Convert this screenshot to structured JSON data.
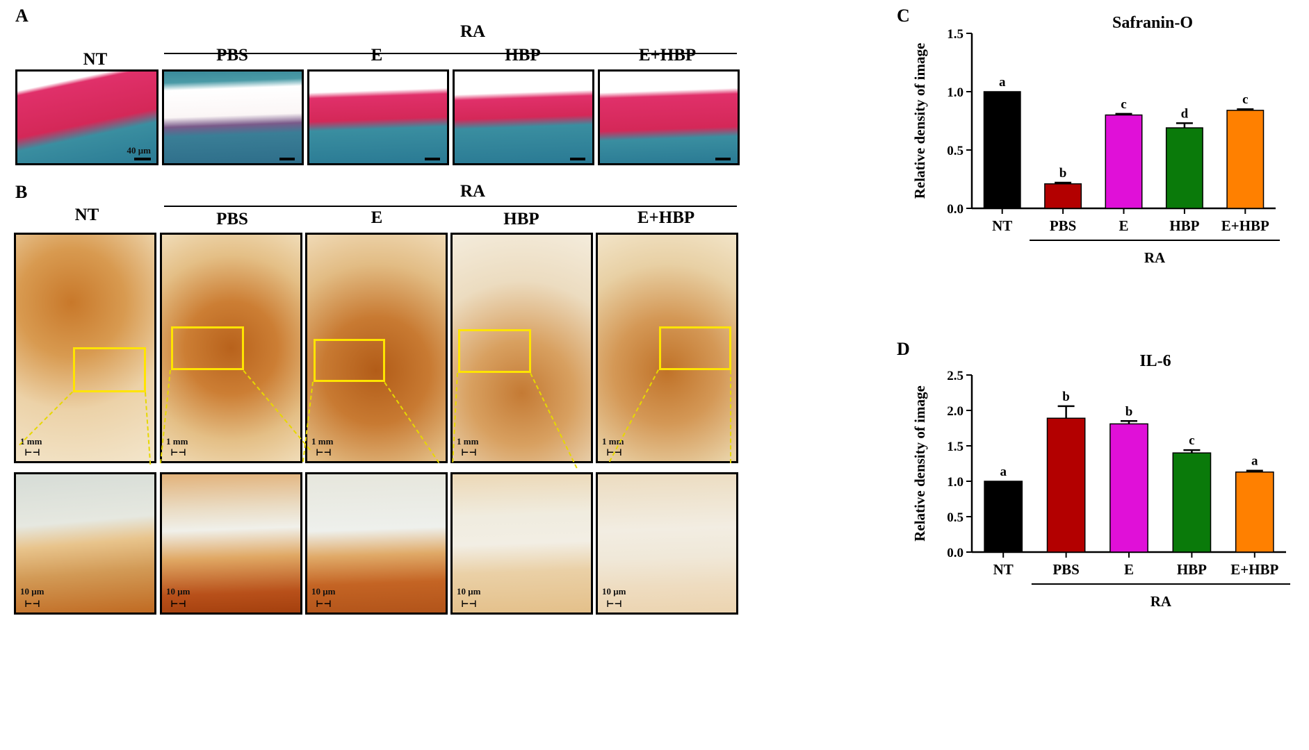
{
  "panels": {
    "a": {
      "letter": "A",
      "group_label": "RA",
      "columns": [
        "NT",
        "PBS",
        "E",
        "HBP",
        "E+HBP"
      ],
      "scale_label": "40 μm"
    },
    "b": {
      "letter": "B",
      "group_label": "RA",
      "columns": [
        "NT",
        "PBS",
        "E",
        "HBP",
        "E+HBP"
      ],
      "scale_top": [
        "1 mm",
        "1 mm",
        "1 mm",
        "1 mm",
        "1 mm"
      ],
      "scale_bottom": [
        "10 μm",
        "10 μm",
        "10 μm",
        "10 μm",
        "10 μm"
      ]
    },
    "c": {
      "letter": "C"
    },
    "d": {
      "letter": "D"
    }
  },
  "chart_data": [
    {
      "type": "bar",
      "title": "Safranin-O",
      "ylabel": "Relative density of image",
      "categories": [
        "NT",
        "PBS",
        "E",
        "HBP",
        "E+HBP"
      ],
      "values": [
        1.0,
        0.21,
        0.8,
        0.69,
        0.84
      ],
      "errors": [
        0.0,
        0.01,
        0.01,
        0.04,
        0.01
      ],
      "letters": [
        "a",
        "b",
        "c",
        "d",
        "c"
      ],
      "colors": [
        "#000000",
        "#b30000",
        "#e010d8",
        "#0a7a0a",
        "#ff8000"
      ],
      "ylim": [
        0,
        1.5
      ],
      "yticks": [
        "0.0",
        "0.5",
        "1.0",
        "1.5"
      ],
      "group_label": "RA"
    },
    {
      "type": "bar",
      "title": "IL-6",
      "ylabel": "Relative density of image",
      "categories": [
        "NT",
        "PBS",
        "E",
        "HBP",
        "E+HBP"
      ],
      "values": [
        1.0,
        1.89,
        1.81,
        1.4,
        1.13
      ],
      "errors": [
        0.0,
        0.17,
        0.04,
        0.04,
        0.02
      ],
      "letters": [
        "a",
        "b",
        "b",
        "c",
        "a"
      ],
      "colors": [
        "#000000",
        "#b30000",
        "#e010d8",
        "#0a7a0a",
        "#ff8000"
      ],
      "ylim": [
        0,
        2.5
      ],
      "yticks": [
        "0.0",
        "0.5",
        "1.0",
        "1.5",
        "2.0",
        "2.5"
      ],
      "group_label": "RA"
    }
  ]
}
